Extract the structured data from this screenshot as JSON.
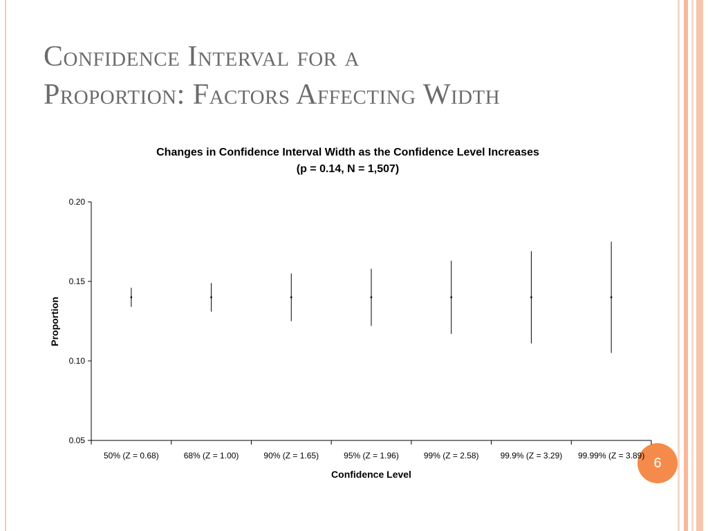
{
  "slide": {
    "title_line1": "Confidence Interval for a",
    "title_line2": "Proportion: Factors Affecting Width",
    "page_number": "6",
    "colors": {
      "title": "#6b6b6b",
      "accent": "#f58b4a",
      "stripe": "#f7b99e"
    }
  },
  "chart_data": {
    "type": "scatter",
    "title": "Changes in Confidence Interval Width as the Confidence Level Increases",
    "subtitle": "(p = 0.14, N = 1,507)",
    "xlabel": "Confidence Level",
    "ylabel": "Proportion",
    "categories": [
      "50% (Z = 0.68)",
      "68% (Z = 1.00)",
      "90% (Z = 1.65)",
      "95% (Z = 1.96)",
      "99% (Z = 2.58)",
      "99.9% (Z = 3.29)",
      "99.99% (Z = 3.89)"
    ],
    "point": [
      0.14,
      0.14,
      0.14,
      0.14,
      0.14,
      0.14,
      0.14
    ],
    "lower": [
      0.134,
      0.131,
      0.125,
      0.122,
      0.117,
      0.111,
      0.105
    ],
    "upper": [
      0.146,
      0.149,
      0.155,
      0.158,
      0.163,
      0.169,
      0.175
    ],
    "ylim": [
      0.05,
      0.2
    ],
    "yticks": [
      "0.05",
      "0.10",
      "0.15",
      "0.20"
    ],
    "grid": false,
    "legend": "none"
  }
}
